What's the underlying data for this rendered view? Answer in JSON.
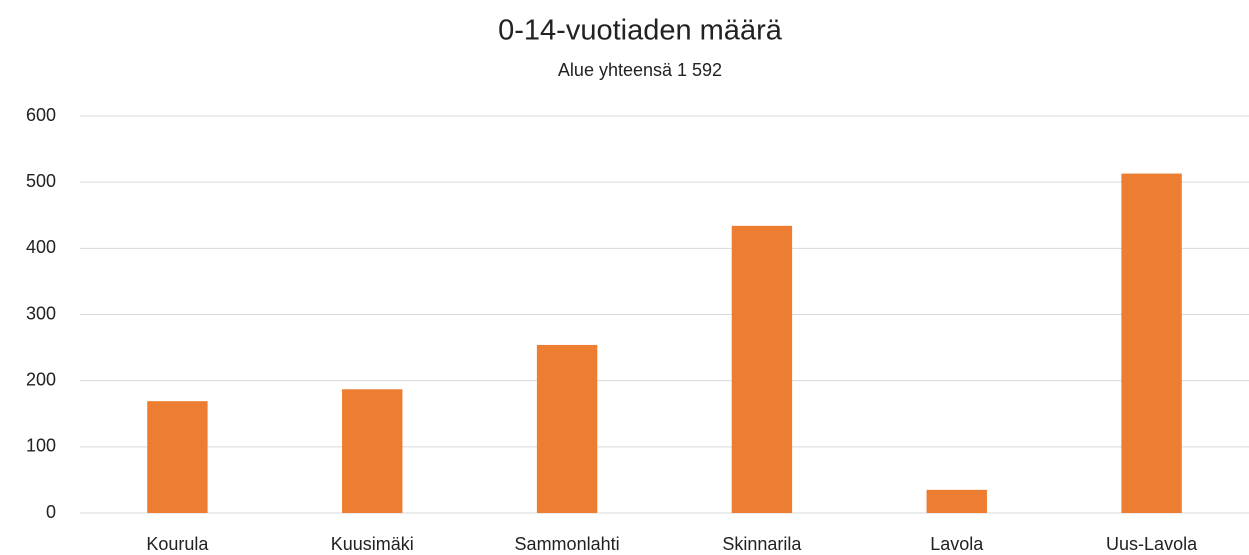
{
  "chart_data": {
    "type": "bar",
    "title": "0-14-vuotiaden määrä",
    "subtitle": "Alue yhteensä 1 592",
    "categories": [
      "Kourula",
      "Kuusimäki",
      "Sammonlahti",
      "Skinnarila",
      "Lavola",
      "Uus-Lavola"
    ],
    "values": [
      169,
      187,
      254,
      434,
      35,
      513
    ],
    "color": "#ed7d31",
    "ylim": [
      0,
      600
    ],
    "yticks": [
      0,
      100,
      200,
      300,
      400,
      500,
      600
    ],
    "grid": true
  }
}
